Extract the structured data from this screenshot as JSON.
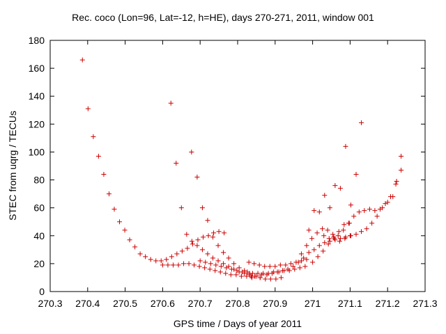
{
  "chart_data": {
    "type": "scatter",
    "title": "Rec. coco (Lon=96, Lat=-12, h=HE), days 270-271, 2011, window 001",
    "xlabel": "GPS time / Days of year 2011",
    "ylabel": "STEC from uqrg / TECUs",
    "xlim": [
      270.3,
      271.3
    ],
    "ylim": [
      0,
      180
    ],
    "xticks": [
      "270.3",
      "270.4",
      "270.5",
      "270.6",
      "270.7",
      "270.8",
      "270.9",
      "271",
      "271.1",
      "271.2",
      "271.3"
    ],
    "yticks": [
      "0",
      "20",
      "40",
      "60",
      "80",
      "100",
      "120",
      "140",
      "160",
      "180"
    ],
    "grid": false,
    "marker": "+",
    "color": "#cc0000",
    "series": [
      {
        "points": [
          [
            270.386,
            166
          ],
          [
            270.401,
            131
          ],
          [
            270.415,
            111
          ],
          [
            270.429,
            97
          ],
          [
            270.443,
            84
          ],
          [
            270.457,
            70
          ],
          [
            270.471,
            59
          ],
          [
            270.485,
            50
          ],
          [
            270.499,
            44
          ],
          [
            270.512,
            37
          ],
          [
            270.526,
            32
          ],
          [
            270.54,
            27
          ],
          [
            270.554,
            25
          ],
          [
            270.568,
            23
          ],
          [
            270.582,
            22
          ],
          [
            270.596,
            22
          ],
          [
            270.61,
            23
          ],
          [
            270.624,
            25
          ],
          [
            270.638,
            27
          ],
          [
            270.652,
            29
          ],
          [
            270.666,
            31
          ],
          [
            270.68,
            34
          ],
          [
            270.694,
            37
          ],
          [
            270.708,
            39
          ],
          [
            270.722,
            40
          ],
          [
            270.736,
            42
          ],
          [
            270.75,
            43
          ],
          [
            270.764,
            42
          ],
          [
            270.622,
            135
          ],
          [
            270.636,
            92
          ],
          [
            270.65,
            60
          ],
          [
            270.664,
            41
          ],
          [
            270.678,
            36
          ],
          [
            270.692,
            33
          ],
          [
            270.706,
            30
          ],
          [
            270.72,
            27
          ],
          [
            270.734,
            24
          ],
          [
            270.748,
            22
          ],
          [
            270.762,
            20
          ],
          [
            270.776,
            18
          ],
          [
            270.79,
            16
          ],
          [
            270.804,
            14
          ],
          [
            270.818,
            13
          ],
          [
            270.832,
            12
          ],
          [
            270.846,
            11
          ],
          [
            270.86,
            10
          ],
          [
            270.677,
            100
          ],
          [
            270.692,
            82
          ],
          [
            270.706,
            60
          ],
          [
            270.72,
            51
          ],
          [
            270.734,
            39
          ],
          [
            270.748,
            33
          ],
          [
            270.762,
            28
          ],
          [
            270.776,
            24
          ],
          [
            270.79,
            20
          ],
          [
            270.804,
            17
          ],
          [
            270.818,
            15
          ],
          [
            270.832,
            13
          ],
          [
            270.846,
            11
          ],
          [
            270.86,
            10
          ],
          [
            270.874,
            9
          ],
          [
            270.888,
            9
          ],
          [
            270.902,
            9
          ],
          [
            270.916,
            10
          ],
          [
            270.6,
            19
          ],
          [
            270.614,
            19
          ],
          [
            270.628,
            19
          ],
          [
            270.642,
            19
          ],
          [
            270.656,
            20
          ],
          [
            270.67,
            20
          ],
          [
            270.684,
            19
          ],
          [
            270.698,
            18
          ],
          [
            270.712,
            17
          ],
          [
            270.726,
            16
          ],
          [
            270.74,
            15
          ],
          [
            270.754,
            14
          ],
          [
            270.768,
            13
          ],
          [
            270.782,
            12
          ],
          [
            270.796,
            12
          ],
          [
            270.81,
            11
          ],
          [
            270.824,
            11
          ],
          [
            270.838,
            10
          ],
          [
            270.7,
            22
          ],
          [
            270.714,
            21
          ],
          [
            270.728,
            20
          ],
          [
            270.742,
            19
          ],
          [
            270.756,
            18
          ],
          [
            270.77,
            17
          ],
          [
            270.784,
            16
          ],
          [
            270.798,
            15
          ],
          [
            270.812,
            14
          ],
          [
            270.826,
            14
          ],
          [
            270.84,
            13
          ],
          [
            270.854,
            13
          ],
          [
            270.868,
            13
          ],
          [
            270.882,
            13
          ],
          [
            270.896,
            14
          ],
          [
            270.91,
            14
          ],
          [
            270.924,
            15
          ],
          [
            270.938,
            15
          ],
          [
            270.952,
            16
          ],
          [
            270.966,
            17
          ],
          [
            270.98,
            18
          ],
          [
            270.83,
            21
          ],
          [
            270.844,
            20
          ],
          [
            270.858,
            19
          ],
          [
            270.872,
            18
          ],
          [
            270.886,
            18
          ],
          [
            270.9,
            18
          ],
          [
            270.914,
            19
          ],
          [
            270.928,
            19
          ],
          [
            270.942,
            20
          ],
          [
            270.956,
            21
          ],
          [
            270.97,
            22
          ],
          [
            270.984,
            23
          ],
          [
            270.836,
            11
          ],
          [
            270.85,
            11
          ],
          [
            270.864,
            12
          ],
          [
            270.878,
            12
          ],
          [
            270.892,
            13
          ],
          [
            270.906,
            14
          ],
          [
            270.92,
            15
          ],
          [
            270.934,
            16
          ],
          [
            270.948,
            18
          ],
          [
            270.962,
            21
          ],
          [
            270.976,
            24
          ],
          [
            270.99,
            28
          ],
          [
            270.97,
            27
          ],
          [
            270.984,
            33
          ],
          [
            270.998,
            38
          ],
          [
            271.012,
            42
          ],
          [
            271.026,
            45
          ],
          [
            271.04,
            44
          ],
          [
            271.054,
            41
          ],
          [
            271.068,
            40
          ],
          [
            271.082,
            44
          ],
          [
            271.096,
            49
          ],
          [
            271.11,
            54
          ],
          [
            271.124,
            57
          ],
          [
            271.138,
            58
          ],
          [
            271.152,
            59
          ],
          [
            271.166,
            58
          ],
          [
            271.18,
            59
          ],
          [
            271.194,
            63
          ],
          [
            271.208,
            68
          ],
          [
            271.222,
            77
          ],
          [
            271.236,
            87
          ],
          [
            270.99,
            44
          ],
          [
            271.004,
            58
          ],
          [
            271.018,
            57
          ],
          [
            271.032,
            69
          ],
          [
            271.046,
            60
          ],
          [
            271.06,
            76
          ],
          [
            271.074,
            74
          ],
          [
            271.088,
            104
          ],
          [
            271.102,
            62
          ],
          [
            271.116,
            84
          ],
          [
            271.13,
            121
          ],
          [
            271.224,
            79
          ],
          [
            271.236,
            97
          ],
          [
            271.004,
            30
          ],
          [
            271.018,
            33
          ],
          [
            271.032,
            35
          ],
          [
            271.046,
            36
          ],
          [
            271.06,
            37
          ],
          [
            271.074,
            38
          ],
          [
            271.088,
            39
          ],
          [
            271.102,
            40
          ],
          [
            271.116,
            41
          ],
          [
            271.13,
            43
          ],
          [
            271.144,
            45
          ],
          [
            271.158,
            49
          ],
          [
            271.172,
            54
          ],
          [
            271.186,
            60
          ],
          [
            271.2,
            64
          ],
          [
            271.214,
            68
          ],
          [
            271.0,
            21
          ],
          [
            271.014,
            25
          ],
          [
            271.028,
            29
          ],
          [
            271.042,
            34
          ],
          [
            271.056,
            39
          ],
          [
            271.07,
            43
          ],
          [
            271.084,
            48
          ],
          [
            271.098,
            49
          ],
          [
            271.03,
            40
          ],
          [
            271.044,
            38
          ],
          [
            271.058,
            38
          ],
          [
            271.072,
            36
          ],
          [
            271.086,
            38
          ],
          [
            271.1,
            40
          ]
        ]
      }
    ]
  }
}
